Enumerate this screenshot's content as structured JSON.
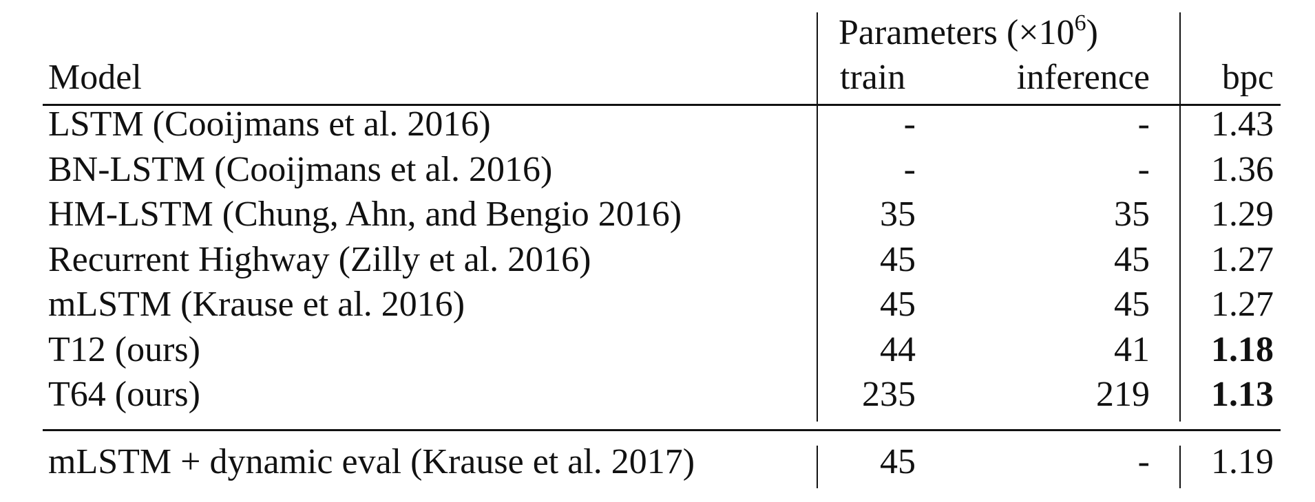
{
  "table": {
    "header": {
      "model": "Model",
      "params_group_prefix": "Parameters (×10",
      "params_group_exp": "6",
      "params_group_suffix": ")",
      "train": "train",
      "inference": "inference",
      "bpc": "bpc"
    },
    "rows": [
      {
        "model": "LSTM (Cooijmans et al. 2016)",
        "train": "-",
        "inference": "-",
        "bpc": "1.43",
        "bold": false
      },
      {
        "model": "BN-LSTM (Cooijmans et al. 2016)",
        "train": "-",
        "inference": "-",
        "bpc": "1.36",
        "bold": false
      },
      {
        "model": "HM-LSTM (Chung, Ahn, and Bengio 2016)",
        "train": "35",
        "inference": "35",
        "bpc": "1.29",
        "bold": false
      },
      {
        "model": "Recurrent Highway (Zilly et al. 2016)",
        "train": "45",
        "inference": "45",
        "bpc": "1.27",
        "bold": false
      },
      {
        "model": "mLSTM (Krause et al. 2016)",
        "train": "45",
        "inference": "45",
        "bpc": "1.27",
        "bold": false
      },
      {
        "model": "T12 (ours)",
        "train": "44",
        "inference": "41",
        "bpc": "1.18",
        "bold": true
      },
      {
        "model": "T64 (ours)",
        "train": "235",
        "inference": "219",
        "bpc": "1.13",
        "bold": true
      }
    ],
    "extra_row": {
      "model": "mLSTM + dynamic eval (Krause et al. 2017)",
      "train": "45",
      "inference": "-",
      "bpc": "1.19",
      "bold": false
    }
  }
}
